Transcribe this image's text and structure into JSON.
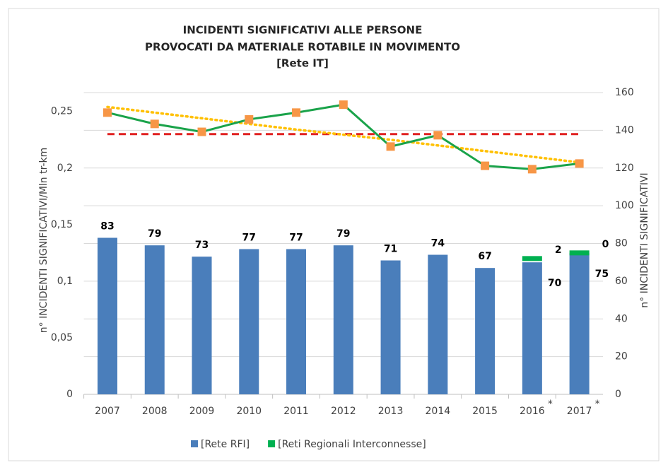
{
  "chart_data": {
    "type": "bar-line",
    "title": [
      "INCIDENTI SIGNIFICATIVI ALLE PERSONE",
      "PROVOCATI DA MATERIALE ROTABILE IN MOVIMENTO",
      "[Rete IT]"
    ],
    "y_label": "n° INCIDENTI SIGNIFICATIVI/Mln tr-km",
    "y2_label": "n° INCIDENTI SIGNIFICATIVI",
    "categories": [
      "2007",
      "2008",
      "2009",
      "2010",
      "2011",
      "2012",
      "2013",
      "2014",
      "2015",
      "2016",
      "2017"
    ],
    "category_notes": [
      null,
      null,
      null,
      null,
      null,
      null,
      null,
      null,
      null,
      "*",
      "*"
    ],
    "ylim": [
      0,
      0.2667
    ],
    "yticks": [
      0,
      {
        "value": 0.05,
        "label": "0,05"
      },
      {
        "value": 0.1,
        "label": "0,1"
      },
      {
        "value": 0.15,
        "label": "0,15"
      },
      {
        "value": 0.2,
        "label": "0,2"
      },
      {
        "value": 0.25,
        "label": "0,25"
      }
    ],
    "y2lim": [
      0,
      160
    ],
    "y2ticks": [
      0,
      20,
      40,
      60,
      80,
      100,
      120,
      140,
      160
    ],
    "grid": true,
    "legend": "bottom",
    "series": [
      {
        "name": "[Rete RFI]",
        "kind": "bar",
        "axis": "y2",
        "color": "#4a7ebb",
        "values": [
          83,
          79,
          73,
          77,
          77,
          79,
          71,
          74,
          67,
          70,
          75
        ]
      },
      {
        "name": "[Reti Regionali Interconnesse]",
        "kind": "bar",
        "axis": "y2",
        "color": "#00b050",
        "values": [
          null,
          null,
          null,
          null,
          null,
          null,
          null,
          null,
          null,
          2,
          0
        ]
      },
      {
        "kind": "line",
        "axis": "y",
        "color": "#1aa34a",
        "marker_color": "#f79646",
        "values": [
          0.249,
          0.239,
          0.232,
          0.243,
          0.249,
          0.256,
          0.219,
          0.229,
          0.202,
          0.199,
          0.204
        ]
      },
      {
        "kind": "trend",
        "axis": "y",
        "color": "#ffc000",
        "values": [
          0.254,
          0.249,
          0.244,
          0.239,
          0.234,
          0.2295,
          0.225,
          0.22,
          0.215,
          0.21,
          0.205
        ]
      },
      {
        "kind": "target",
        "axis": "y",
        "color": "#e02020",
        "values": [
          0.23,
          0.23,
          0.23,
          0.23,
          0.23,
          0.23,
          0.23,
          0.23,
          0.23,
          0.23,
          0.23
        ]
      }
    ]
  }
}
